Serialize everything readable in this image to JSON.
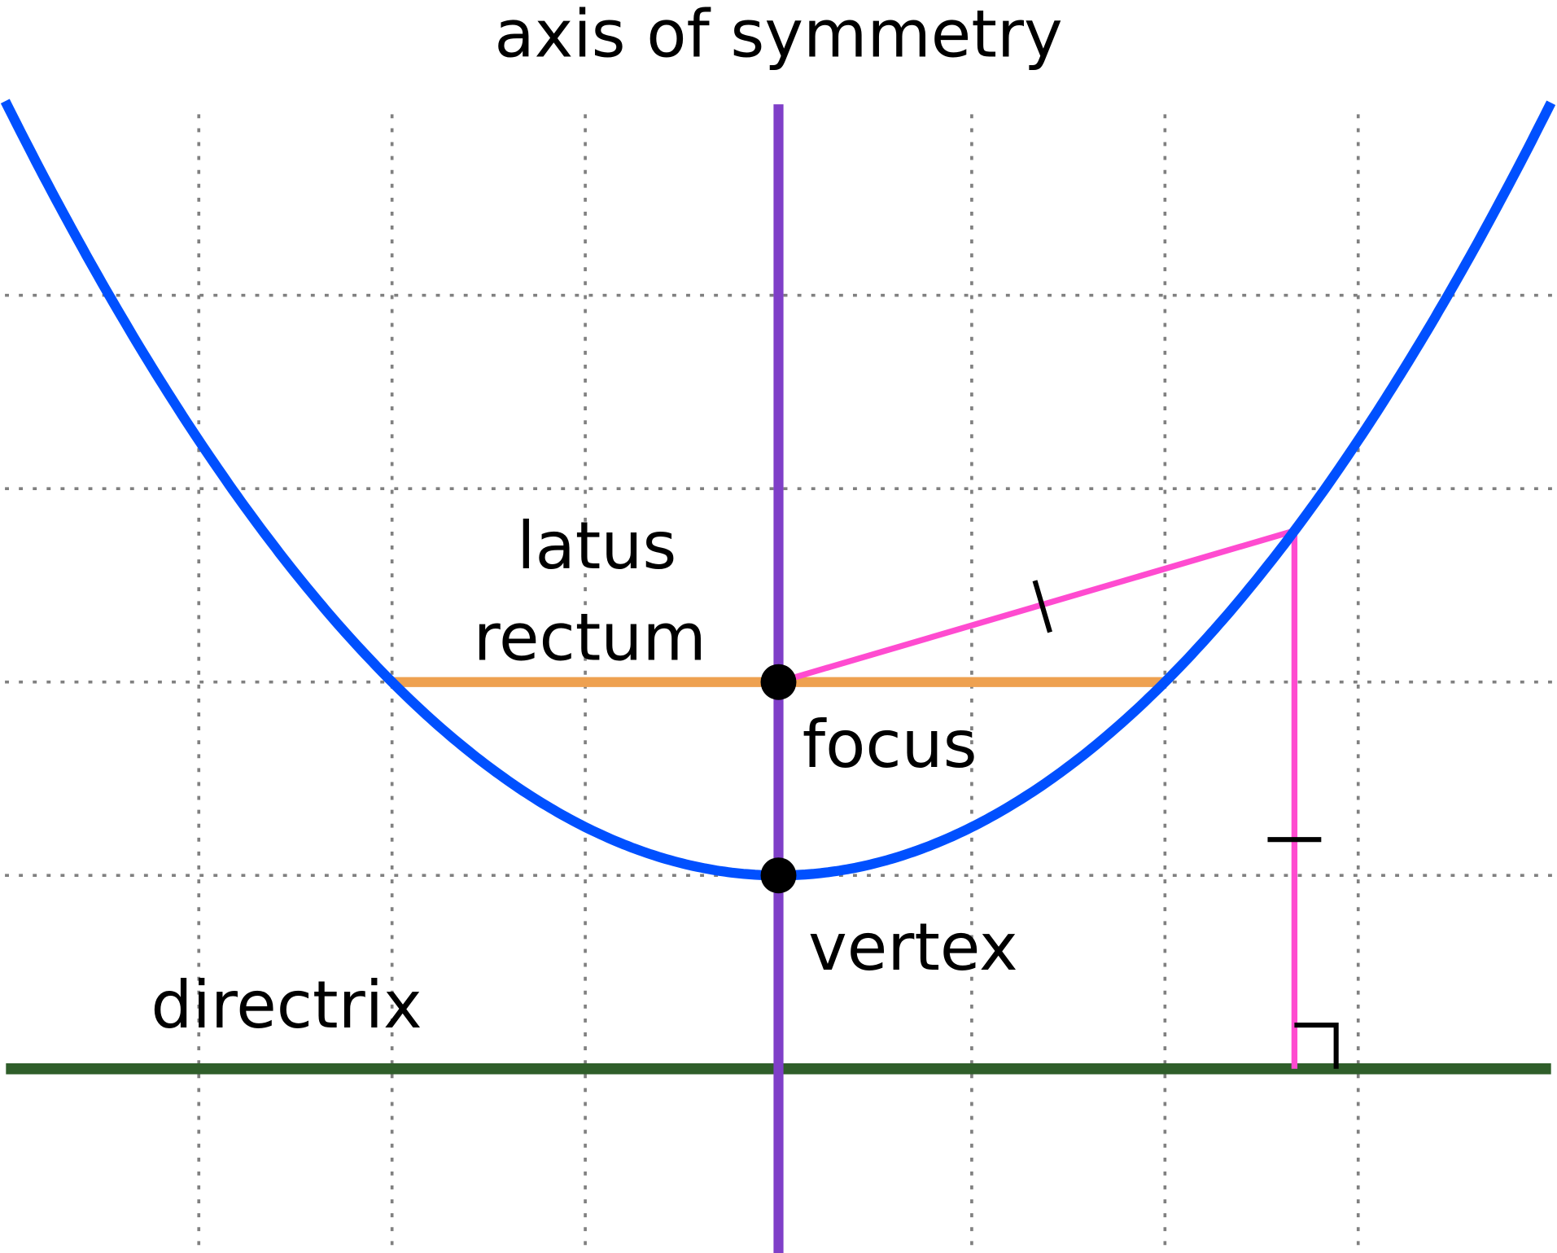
{
  "labels": {
    "axis_of_symmetry": "axis of symmetry",
    "latus_rectum_line1": "latus",
    "latus_rectum_line2": "rectum",
    "focus": "focus",
    "vertex": "vertex",
    "directrix": "directrix"
  },
  "colors": {
    "parabola": "#0050ff",
    "axis": "#7f3fc8",
    "latus_rectum": "#eea150",
    "distance_lines": "#ff4bd0",
    "directrix": "#2f5e2a",
    "grid": "#808080",
    "points": "#000000"
  },
  "geometry_units": {
    "parabola_equation": "y = x^2 / 4",
    "vertex": [
      0,
      0
    ],
    "focus": [
      0,
      1
    ],
    "directrix_y": -1,
    "sample_point_x": 2.67
  }
}
